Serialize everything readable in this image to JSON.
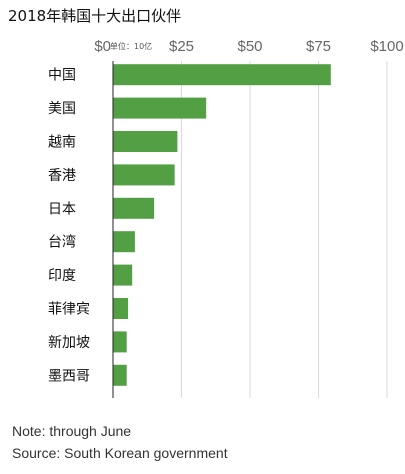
{
  "title": "2018年韩国十大出口伙伴",
  "chart_data": {
    "type": "bar",
    "orientation": "horizontal",
    "unit_label": "单位：10亿",
    "categories": [
      "中国",
      "美国",
      "越南",
      "香港",
      "日本",
      "台湾",
      "印度",
      "菲律宾",
      "新加坡",
      "墨西哥"
    ],
    "values": [
      79.5,
      34,
      23.5,
      22.5,
      15,
      8,
      7,
      5.5,
      5,
      5
    ],
    "xlim": [
      0,
      100
    ],
    "tick_values": [
      0,
      25,
      50,
      75,
      100
    ],
    "tick_labels": [
      "$0",
      "$25",
      "$50",
      "$75",
      "$100"
    ],
    "grid": true,
    "bar_color": "#52a043"
  },
  "notes": {
    "note": "Note: through June",
    "source": "Source: South Korean government"
  }
}
